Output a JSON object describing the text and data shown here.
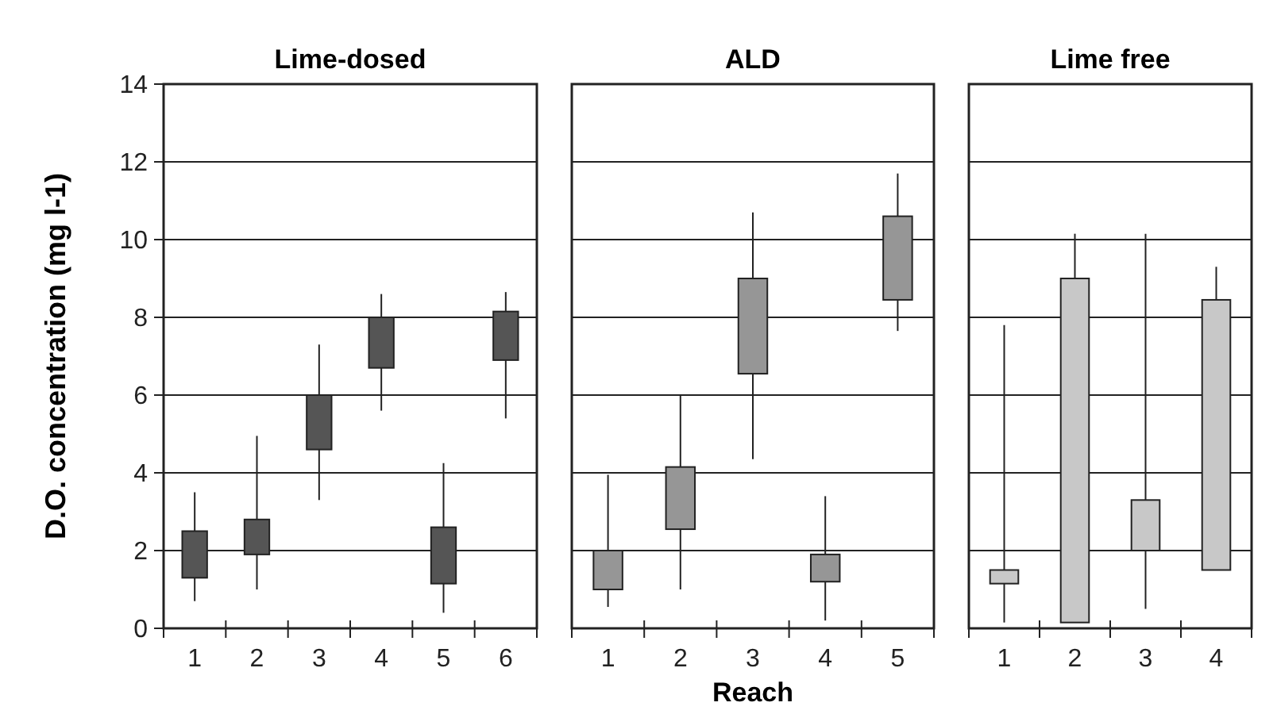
{
  "chart_data": [
    {
      "type": "box",
      "title": "Lime-dosed",
      "ylabel": "D.O. concentration (mg l-1)",
      "categories": [
        "1",
        "2",
        "3",
        "4",
        "5",
        "6"
      ],
      "ylim": [
        0,
        14
      ],
      "yticks": [
        0,
        2,
        4,
        6,
        8,
        10,
        12,
        14
      ],
      "grid": "y",
      "color": "#555555",
      "boxes": [
        {
          "low": 0.7,
          "q1": 1.3,
          "q3": 2.5,
          "high": 3.5
        },
        {
          "low": 1.0,
          "q1": 1.9,
          "q3": 2.8,
          "high": 4.95
        },
        {
          "low": 3.3,
          "q1": 4.6,
          "q3": 6.0,
          "high": 7.3
        },
        {
          "low": 5.6,
          "q1": 6.7,
          "q3": 8.0,
          "high": 8.6
        },
        {
          "low": 0.4,
          "q1": 1.15,
          "q3": 2.6,
          "high": 4.25
        },
        {
          "low": 5.4,
          "q1": 6.9,
          "q3": 8.15,
          "high": 8.65
        }
      ]
    },
    {
      "type": "box",
      "title": "ALD",
      "xlabel": "Reach",
      "categories": [
        "1",
        "2",
        "3",
        "4",
        "5"
      ],
      "ylim": [
        0,
        14
      ],
      "yticks": [
        0,
        2,
        4,
        6,
        8,
        10,
        12,
        14
      ],
      "tick_labels": "x",
      "grid": "y",
      "color": "#969696",
      "boxes": [
        {
          "low": 0.55,
          "q1": 1.0,
          "q3": 2.0,
          "high": 3.95
        },
        {
          "low": 1.0,
          "q1": 2.55,
          "q3": 4.15,
          "high": 6.0
        },
        {
          "low": 4.35,
          "q1": 6.55,
          "q3": 9.0,
          "high": 10.7
        },
        {
          "low": 0.2,
          "q1": 1.2,
          "q3": 1.9,
          "high": 3.4
        },
        {
          "low": 7.65,
          "q1": 8.45,
          "q3": 10.6,
          "high": 11.7
        }
      ]
    },
    {
      "type": "box",
      "title": "Lime free",
      "categories": [
        "1",
        "2",
        "3",
        "4"
      ],
      "ylim": [
        0,
        14
      ],
      "yticks": [
        0,
        2,
        4,
        6,
        8,
        10,
        12,
        14
      ],
      "tick_labels": "x",
      "grid": "y",
      "color": "#c8c8c8",
      "boxes": [
        {
          "low": 0.15,
          "q1": 1.15,
          "q3": 1.5,
          "high": 7.8
        },
        {
          "low": 0.15,
          "q1": 0.15,
          "q3": 9.0,
          "high": 10.15
        },
        {
          "low": 0.5,
          "q1": 2.0,
          "q3": 3.3,
          "high": 10.15
        },
        {
          "low": 1.5,
          "q1": 1.5,
          "q3": 8.45,
          "high": 9.3
        }
      ]
    }
  ]
}
